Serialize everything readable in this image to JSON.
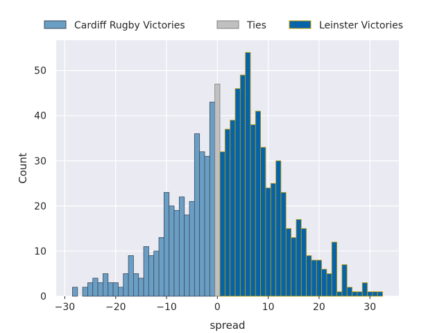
{
  "chart_data": {
    "type": "bar",
    "xlabel": "spread",
    "ylabel": "Count",
    "xlim": [
      -31.7,
      35.7
    ],
    "ylim": [
      0,
      56.7
    ],
    "xticks": [
      -30,
      -20,
      -10,
      0,
      10,
      20,
      30
    ],
    "xtick_labels": [
      "−30",
      "−20",
      "−10",
      "0",
      "10",
      "20",
      "30"
    ],
    "yticks": [
      0,
      10,
      20,
      30,
      40,
      50
    ],
    "yticks_labels": [
      "0",
      "10",
      "20",
      "30",
      "40",
      "50"
    ],
    "grid": true,
    "legend_position": "top, above plot",
    "bin_width": 1,
    "series": [
      {
        "name": "Cardiff Rugby Victories",
        "color": "#6a9ec5",
        "edge": "#3b4a57",
        "bins": [
          {
            "x": -28,
            "count": 2
          },
          {
            "x": -27,
            "count": 0
          },
          {
            "x": -26,
            "count": 2
          },
          {
            "x": -25,
            "count": 3
          },
          {
            "x": -24,
            "count": 4
          },
          {
            "x": -23,
            "count": 3
          },
          {
            "x": -22,
            "count": 5
          },
          {
            "x": -21,
            "count": 3
          },
          {
            "x": -20,
            "count": 3
          },
          {
            "x": -19,
            "count": 2
          },
          {
            "x": -18,
            "count": 5
          },
          {
            "x": -17,
            "count": 9
          },
          {
            "x": -16,
            "count": 5
          },
          {
            "x": -15,
            "count": 4
          },
          {
            "x": -14,
            "count": 11
          },
          {
            "x": -13,
            "count": 9
          },
          {
            "x": -12,
            "count": 10
          },
          {
            "x": -11,
            "count": 13
          },
          {
            "x": -10,
            "count": 23
          },
          {
            "x": -9,
            "count": 20
          },
          {
            "x": -8,
            "count": 19
          },
          {
            "x": -7,
            "count": 22
          },
          {
            "x": -6,
            "count": 18
          },
          {
            "x": -5,
            "count": 21
          },
          {
            "x": -4,
            "count": 36
          },
          {
            "x": -3,
            "count": 32
          },
          {
            "x": -2,
            "count": 31
          },
          {
            "x": -1,
            "count": 43
          }
        ]
      },
      {
        "name": "Ties",
        "color": "#c0c0c0",
        "edge": "#808080",
        "bins": [
          {
            "x": 0,
            "count": 47
          }
        ]
      },
      {
        "name": "Leinster Victories",
        "color": "#0763a8",
        "edge": "#c8a000",
        "bins": [
          {
            "x": 1,
            "count": 32
          },
          {
            "x": 2,
            "count": 37
          },
          {
            "x": 3,
            "count": 39
          },
          {
            "x": 4,
            "count": 46
          },
          {
            "x": 5,
            "count": 49
          },
          {
            "x": 6,
            "count": 54
          },
          {
            "x": 7,
            "count": 38
          },
          {
            "x": 8,
            "count": 41
          },
          {
            "x": 9,
            "count": 33
          },
          {
            "x": 10,
            "count": 24
          },
          {
            "x": 11,
            "count": 25
          },
          {
            "x": 12,
            "count": 30
          },
          {
            "x": 13,
            "count": 23
          },
          {
            "x": 14,
            "count": 15
          },
          {
            "x": 15,
            "count": 13
          },
          {
            "x": 16,
            "count": 17
          },
          {
            "x": 17,
            "count": 15
          },
          {
            "x": 18,
            "count": 9
          },
          {
            "x": 19,
            "count": 8
          },
          {
            "x": 20,
            "count": 8
          },
          {
            "x": 21,
            "count": 6
          },
          {
            "x": 22,
            "count": 5
          },
          {
            "x": 23,
            "count": 12
          },
          {
            "x": 24,
            "count": 1
          },
          {
            "x": 25,
            "count": 7
          },
          {
            "x": 26,
            "count": 2
          },
          {
            "x": 27,
            "count": 1
          },
          {
            "x": 28,
            "count": 1
          },
          {
            "x": 29,
            "count": 3
          },
          {
            "x": 30,
            "count": 1
          },
          {
            "x": 31,
            "count": 1
          },
          {
            "x": 32,
            "count": 1
          }
        ]
      }
    ]
  }
}
